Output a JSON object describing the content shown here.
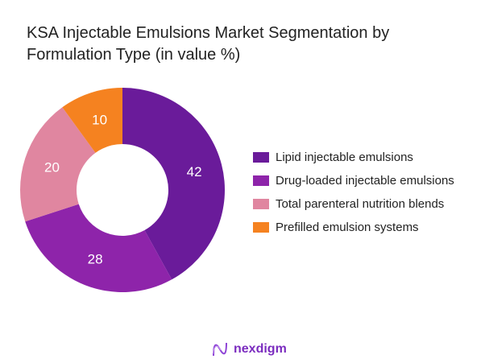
{
  "chart_data": {
    "type": "pie",
    "donut": true,
    "title": "KSA Injectable Emulsions Market Segmentation by Formulation Type (in value %)",
    "categories": [
      "Lipid injectable emulsions",
      "Drug-loaded injectable emulsions",
      "Total parenteral nutrition blends",
      "Prefilled emulsion systems"
    ],
    "values": [
      42,
      28,
      20,
      10
    ],
    "colors": [
      "#6a1b9a",
      "#8e24aa",
      "#e086a0",
      "#f58220"
    ],
    "legend_position": "right"
  },
  "logo": {
    "text": "nexdigm"
  }
}
